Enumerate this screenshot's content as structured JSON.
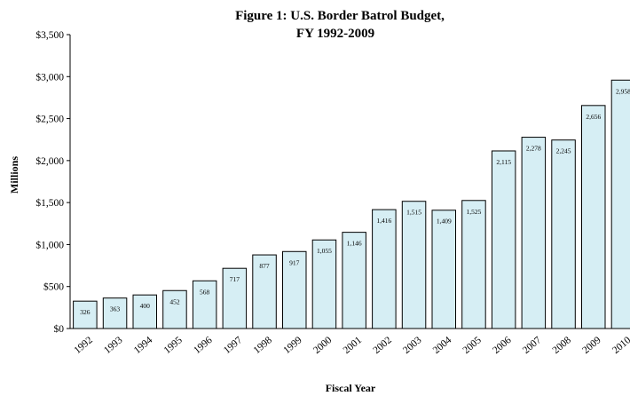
{
  "chart_data": {
    "type": "bar",
    "title": "Figure 1: U.S. Border Batrol Budget,",
    "subtitle": "FY 1992-2009",
    "xlabel": "Fiscal Year",
    "ylabel": "Millions",
    "ylim": [
      0,
      3500
    ],
    "y_ticks": [
      "$0",
      "$500",
      "$1,000",
      "$1,500",
      "$2,000",
      "$2,500",
      "$3,000",
      "$3,500"
    ],
    "categories": [
      "1992",
      "1993",
      "1994",
      "1995",
      "1996",
      "1997",
      "1998",
      "1999",
      "2000",
      "2001",
      "2002",
      "2003",
      "2004",
      "2005",
      "2006",
      "2007",
      "2008",
      "2009",
      "2010"
    ],
    "values": [
      326,
      363,
      400,
      452,
      568,
      717,
      877,
      917,
      1055,
      1146,
      1416,
      1515,
      1409,
      1525,
      2115,
      2278,
      2245,
      2656,
      2958
    ],
    "value_labels": [
      "326",
      "363",
      "400",
      "452",
      "568",
      "717",
      "877",
      "917",
      "1,055",
      "1,146",
      "1,416",
      "1,515",
      "1,409",
      "1,525",
      "2,115",
      "2,278",
      "2,245",
      "2,656",
      "2,958"
    ],
    "grid": false,
    "legend": "none",
    "colors": {
      "bar_fill": "#d6eef4",
      "bar_stroke": "#000000",
      "axis": "#000000"
    }
  }
}
